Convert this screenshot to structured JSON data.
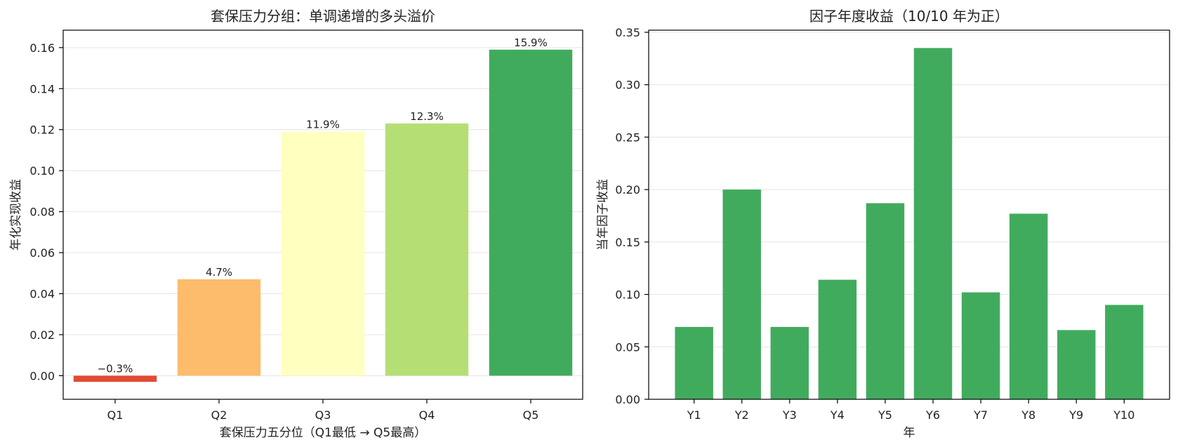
{
  "chart_data": [
    {
      "type": "bar",
      "title": "套保压力分组：单调递增的多头溢价",
      "xlabel": "套保压力五分位（Q1最低 → Q5最高）",
      "ylabel": "年化实现收益",
      "categories": [
        "Q1",
        "Q2",
        "Q3",
        "Q4",
        "Q5"
      ],
      "values": [
        -0.003,
        0.047,
        0.119,
        0.123,
        0.159
      ],
      "data_labels": [
        "−0.3%",
        "4.7%",
        "11.9%",
        "12.3%",
        "15.9%"
      ],
      "bar_colors": [
        "#e34a33",
        "#fdbb6c",
        "#ffffbf",
        "#b5df75",
        "#41ab5d"
      ],
      "ylim": [
        -0.0115,
        0.1685
      ],
      "yticks": [
        0.0,
        0.02,
        0.04,
        0.06,
        0.08,
        0.1,
        0.12,
        0.14,
        0.16
      ],
      "ytick_labels": [
        "0.00",
        "0.02",
        "0.04",
        "0.06",
        "0.08",
        "0.10",
        "0.12",
        "0.14",
        "0.16"
      ],
      "grid": "y",
      "legend": "none"
    },
    {
      "type": "bar",
      "title": "因子年度收益（10/10 年为正）",
      "xlabel": "年",
      "ylabel": "当年因子收益",
      "categories": [
        "Y1",
        "Y2",
        "Y3",
        "Y4",
        "Y5",
        "Y6",
        "Y7",
        "Y8",
        "Y9",
        "Y10"
      ],
      "values": [
        0.069,
        0.2,
        0.069,
        0.114,
        0.187,
        0.335,
        0.102,
        0.177,
        0.066,
        0.09
      ],
      "bar_colors": [
        "#41ab5d"
      ],
      "ylim": [
        0.0,
        0.352
      ],
      "yticks": [
        0.0,
        0.05,
        0.1,
        0.15,
        0.2,
        0.25,
        0.3,
        0.35
      ],
      "ytick_labels": [
        "0.00",
        "0.05",
        "0.10",
        "0.15",
        "0.20",
        "0.25",
        "0.30",
        "0.35"
      ],
      "grid": "y",
      "legend": "none"
    }
  ]
}
